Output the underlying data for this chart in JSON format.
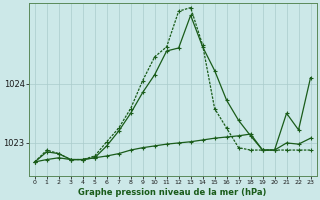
{
  "xlabel": "Graphe pression niveau de la mer (hPa)",
  "background_color": "#cce8e8",
  "grid_color": "#aacccc",
  "line_color": "#1a5c1a",
  "xlim": [
    -0.5,
    23.5
  ],
  "ylim": [
    1022.45,
    1025.35
  ],
  "yticks": [
    1023,
    1024
  ],
  "xticks": [
    0,
    1,
    2,
    3,
    4,
    5,
    6,
    7,
    8,
    9,
    10,
    11,
    12,
    13,
    14,
    15,
    16,
    17,
    18,
    19,
    20,
    21,
    22,
    23
  ],
  "line_flat": [
    1022.68,
    1022.72,
    1022.75,
    1022.72,
    1022.72,
    1022.75,
    1022.78,
    1022.82,
    1022.88,
    1022.92,
    1022.95,
    1022.98,
    1023.0,
    1023.02,
    1023.05,
    1023.08,
    1023.1,
    1023.12,
    1023.15,
    1022.88,
    1022.88,
    1023.0,
    1022.98,
    1023.08
  ],
  "line_main": [
    1022.68,
    1022.85,
    1022.82,
    1022.72,
    1022.72,
    1022.75,
    1022.95,
    1023.2,
    1023.5,
    1023.85,
    1024.15,
    1024.55,
    1024.6,
    1025.15,
    1024.62,
    1024.22,
    1023.72,
    1023.38,
    1023.12,
    1022.88,
    1022.88,
    1023.5,
    1023.22,
    1024.1
  ],
  "line_peak": [
    1022.68,
    1022.88,
    1022.82,
    1022.72,
    1022.72,
    1022.78,
    1023.02,
    1023.25,
    1023.58,
    1024.05,
    1024.45,
    1024.62,
    1025.22,
    1025.28,
    1024.65,
    1023.58,
    1023.25,
    1022.92,
    1022.88,
    1022.88,
    1022.88,
    1022.88,
    1022.88,
    1022.88
  ]
}
